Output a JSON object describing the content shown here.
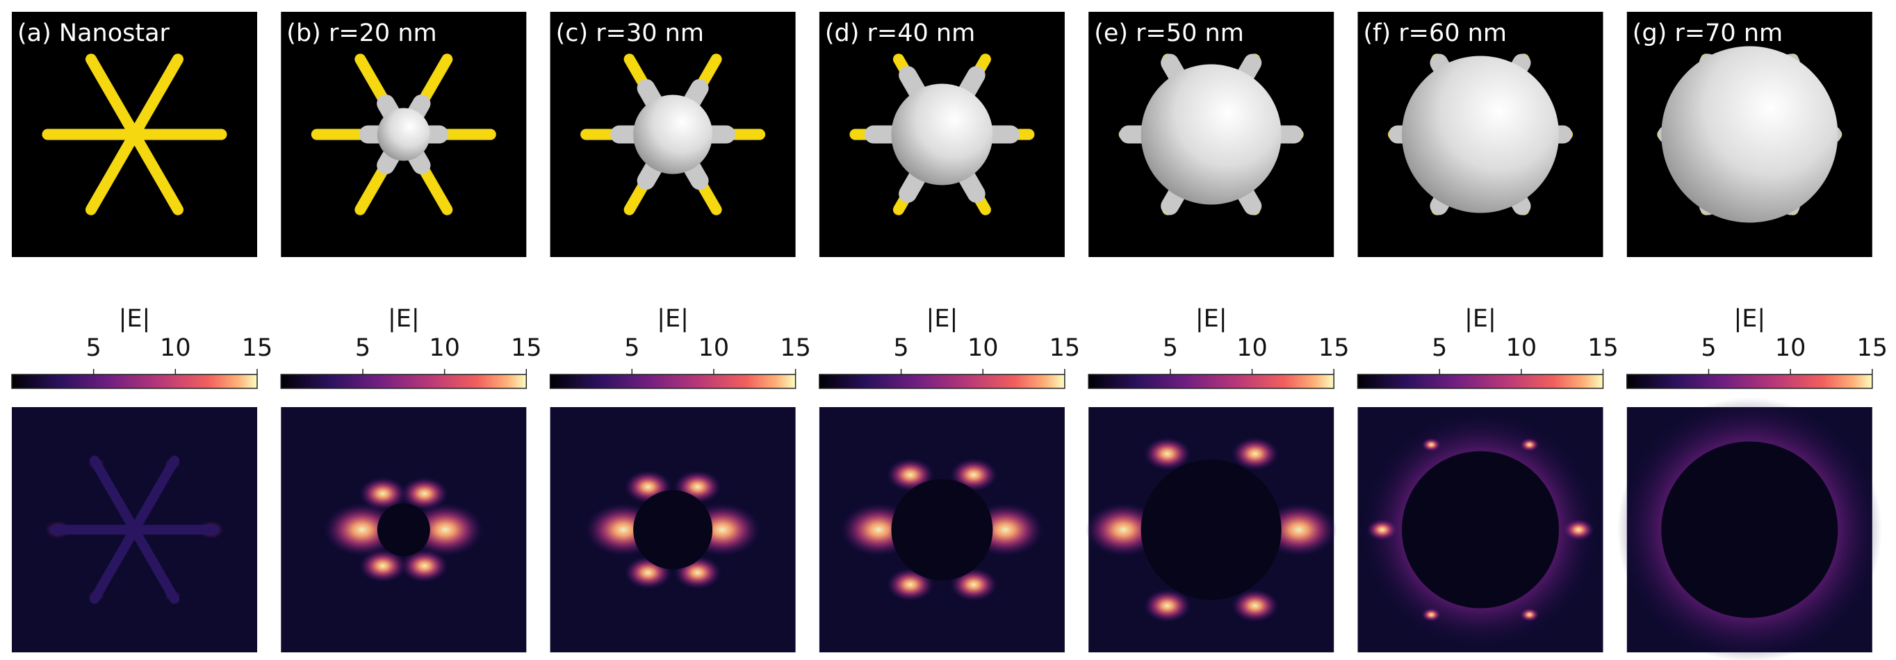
{
  "panels": [
    {
      "label": "(a) Nanostar"
    },
    {
      "label": "(b) r=20 nm"
    },
    {
      "label": "(c) r=30 nm"
    },
    {
      "label": "(d) r=40 nm"
    },
    {
      "label": "(e) r=50 nm"
    },
    {
      "label": "(f) r=60 nm"
    },
    {
      "label": "(g) r=70 nm"
    }
  ],
  "colorbar": {
    "label": "|E|",
    "lim": [
      0,
      15
    ],
    "ticks": [
      5,
      10,
      15
    ]
  }
}
